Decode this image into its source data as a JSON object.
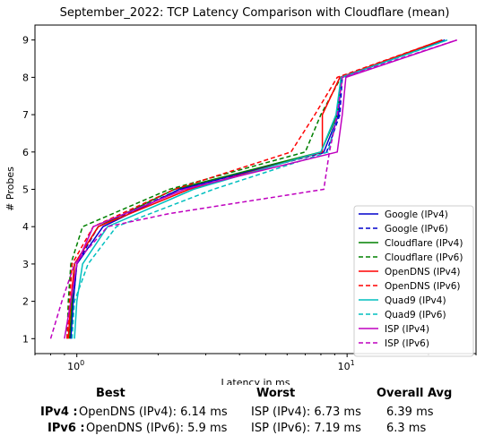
{
  "chart_data": {
    "type": "line",
    "title": "September_2022: TCP Latency Comparison with Cloudflare (mean)",
    "xlabel": "Latency in ms",
    "ylabel": "# Probes",
    "xscale": "log",
    "xlim": [
      0.7,
      30
    ],
    "ylim": [
      0.6,
      9.4
    ],
    "x_ticks": [
      {
        "value": 1,
        "label": "10",
        "sup": "0"
      },
      {
        "value": 10,
        "label": "10",
        "sup": "1"
      }
    ],
    "y_ticks": [
      1,
      2,
      3,
      4,
      5,
      6,
      7,
      8,
      9
    ],
    "grid": false,
    "legend_position": "lower right",
    "series": [
      {
        "name": "Google (IPv4)",
        "color": "#0000cc",
        "dash": "solid",
        "points": [
          [
            0.95,
            1
          ],
          [
            0.97,
            2
          ],
          [
            1.0,
            3
          ],
          [
            1.25,
            4
          ],
          [
            2.4,
            5
          ],
          [
            8.2,
            6
          ],
          [
            9.3,
            7
          ],
          [
            9.5,
            8
          ],
          [
            23.0,
            9
          ]
        ]
      },
      {
        "name": "Google (IPv6)",
        "color": "#0000cc",
        "dash": "dashed",
        "points": [
          [
            0.95,
            1
          ],
          [
            0.97,
            2
          ],
          [
            1.0,
            3
          ],
          [
            1.2,
            4
          ],
          [
            2.4,
            5
          ],
          [
            8.4,
            6
          ],
          [
            9.4,
            7
          ],
          [
            9.6,
            8
          ],
          [
            23.0,
            9
          ]
        ]
      },
      {
        "name": "Cloudflare (IPv4)",
        "color": "#008000",
        "dash": "solid",
        "points": [
          [
            0.94,
            1
          ],
          [
            0.96,
            2
          ],
          [
            0.98,
            3
          ],
          [
            1.2,
            4
          ],
          [
            2.3,
            5
          ],
          [
            8.0,
            6
          ],
          [
            9.2,
            7
          ],
          [
            9.5,
            8
          ],
          [
            22.5,
            9
          ]
        ]
      },
      {
        "name": "Cloudflare (IPv6)",
        "color": "#008000",
        "dash": "dashed",
        "points": [
          [
            0.92,
            1
          ],
          [
            0.93,
            2
          ],
          [
            0.95,
            3
          ],
          [
            1.05,
            4
          ],
          [
            2.2,
            5
          ],
          [
            7.0,
            6
          ],
          [
            8.0,
            7
          ],
          [
            9.5,
            8
          ],
          [
            22.5,
            9
          ]
        ]
      },
      {
        "name": "OpenDNS (IPv4)",
        "color": "#ff0000",
        "dash": "solid",
        "points": [
          [
            0.93,
            1
          ],
          [
            0.95,
            2
          ],
          [
            0.98,
            3
          ],
          [
            1.2,
            4
          ],
          [
            2.6,
            5
          ],
          [
            8.1,
            6
          ],
          [
            8.1,
            7
          ],
          [
            9.4,
            8
          ],
          [
            22.5,
            9
          ]
        ]
      },
      {
        "name": "OpenDNS (IPv6)",
        "color": "#ff0000",
        "dash": "dashed",
        "points": [
          [
            0.92,
            1
          ],
          [
            0.94,
            2
          ],
          [
            0.96,
            3
          ],
          [
            1.15,
            4
          ],
          [
            2.3,
            5
          ],
          [
            6.2,
            6
          ],
          [
            7.6,
            7
          ],
          [
            9.2,
            8
          ],
          [
            22.5,
            9
          ]
        ]
      },
      {
        "name": "Quad9 (IPv4)",
        "color": "#00bfbf",
        "dash": "solid",
        "points": [
          [
            0.98,
            1
          ],
          [
            1.0,
            2
          ],
          [
            1.05,
            3
          ],
          [
            1.3,
            4
          ],
          [
            2.7,
            5
          ],
          [
            8.0,
            6
          ],
          [
            9.1,
            7
          ],
          [
            9.5,
            8
          ],
          [
            23.5,
            9
          ]
        ]
      },
      {
        "name": "Quad9 (IPv6)",
        "color": "#00bfbf",
        "dash": "dashed",
        "points": [
          [
            0.96,
            1
          ],
          [
            0.98,
            2
          ],
          [
            1.1,
            3
          ],
          [
            1.4,
            4
          ],
          [
            3.2,
            5
          ],
          [
            8.5,
            6
          ],
          [
            9.2,
            7
          ],
          [
            9.6,
            8
          ],
          [
            23.5,
            9
          ]
        ]
      },
      {
        "name": "ISP (IPv4)",
        "color": "#bf00bf",
        "dash": "solid",
        "points": [
          [
            0.9,
            1
          ],
          [
            0.95,
            2
          ],
          [
            1.0,
            3
          ],
          [
            1.15,
            4
          ],
          [
            2.5,
            5
          ],
          [
            9.2,
            6
          ],
          [
            9.6,
            7
          ],
          [
            9.9,
            8
          ],
          [
            25.5,
            9
          ]
        ]
      },
      {
        "name": "ISP (IPv6)",
        "color": "#bf00bf",
        "dash": "dashed",
        "points": [
          [
            0.8,
            1
          ],
          [
            0.88,
            2
          ],
          [
            0.98,
            3
          ],
          [
            1.3,
            4
          ],
          [
            2.2,
            4.35
          ],
          [
            8.2,
            5
          ],
          [
            8.6,
            6
          ],
          [
            9.2,
            7
          ],
          [
            9.6,
            8
          ],
          [
            25.5,
            9
          ]
        ]
      }
    ]
  },
  "summary": {
    "best_header": "Best",
    "worst_header": "Worst",
    "avg_header": "Overall Avg",
    "rows": [
      {
        "label": "IPv4 :",
        "best": "OpenDNS (IPv4): 6.14 ms",
        "worst": "ISP (IPv4): 6.73 ms",
        "avg": "6.39 ms"
      },
      {
        "label": "IPv6 :",
        "best": "OpenDNS (IPv6): 5.9 ms",
        "worst": "ISP (IPv6): 7.19 ms",
        "avg": "6.3 ms"
      }
    ]
  }
}
